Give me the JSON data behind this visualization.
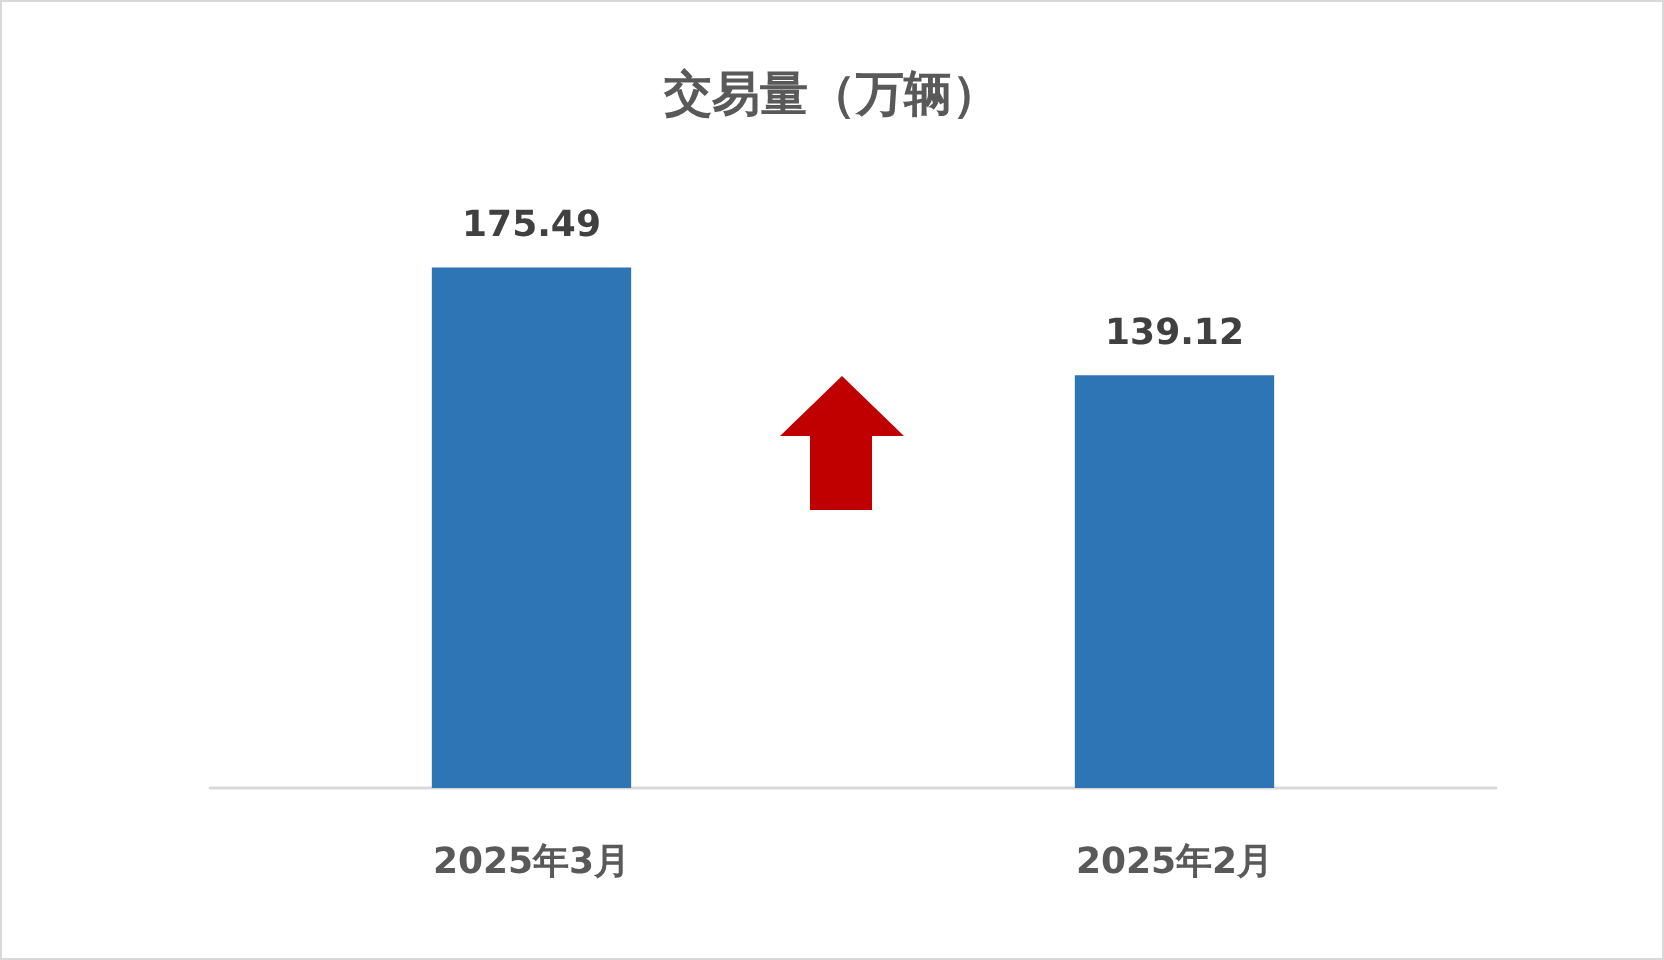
{
  "chart_data": {
    "type": "bar",
    "title": "交易量（万辆）",
    "categories": [
      "2025年3月",
      "2025年2月"
    ],
    "values": [
      175.49,
      139.12
    ],
    "color": "#2e75b6",
    "tick_labels": "x",
    "data_labels": true
  }
}
